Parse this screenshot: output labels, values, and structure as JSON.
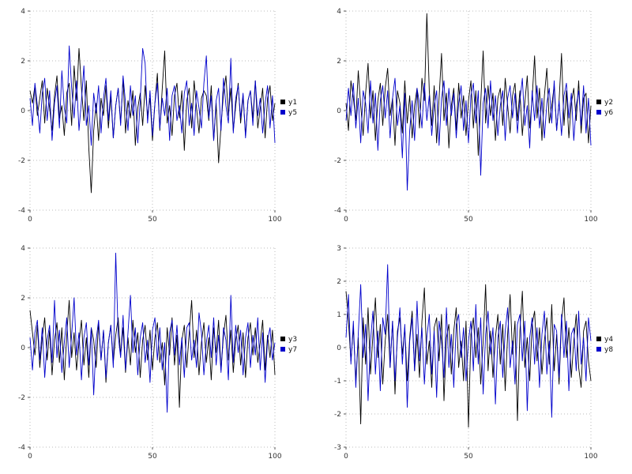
{
  "layout_colors": {
    "background": "#ffffff",
    "grid_color": "#bbbbbb",
    "tick_text_color": "#333333",
    "series_black": "#000000",
    "series_blue": "#0000cc"
  },
  "chart_data": [
    {
      "id": "panel-1",
      "type": "line",
      "title": "",
      "xlabel": "",
      "ylabel": "",
      "xlim": [
        0,
        100
      ],
      "ylim": [
        -4,
        4
      ],
      "xticks": [
        0,
        50,
        100
      ],
      "yticks": [
        -4,
        -2,
        0,
        2,
        4
      ],
      "grid": true,
      "legend_position": "right",
      "series": [
        {
          "name": "y1",
          "color": "#000000",
          "values": [
            0.8,
            0.3,
            1.0,
            -0.2,
            0.5,
            1.2,
            -0.5,
            0.9,
            0.1,
            -0.8,
            0.6,
            1.4,
            -0.3,
            0.2,
            -1.0,
            0.7,
            1.1,
            -0.6,
            1.8,
            0.4,
            2.5,
            0.9,
            -0.4,
            1.2,
            -1.5,
            -3.3,
            -0.8,
            0.3,
            -1.2,
            0.5,
            -0.2,
            1.0,
            -0.7,
            0.6,
            -1.1,
            0.2,
            0.9,
            -0.5,
            1.3,
            -0.9,
            0.4,
            -0.3,
            0.8,
            -1.4,
            0.1,
            0.7,
            -0.6,
            1.0,
            -0.2,
            0.5,
            -1.2,
            0.3,
            1.5,
            -0.8,
            0.9,
            2.4,
            -0.5,
            0.2,
            -1.0,
            0.6,
            1.1,
            -0.3,
            0.8,
            -1.6,
            0.4,
            0.9,
            -0.7,
            1.2,
            0.1,
            -0.9,
            0.5,
            0.8,
            0.6,
            -0.4,
            1.0,
            -1.2,
            0.3,
            -2.1,
            -0.6,
            0.7,
            1.4,
            -0.2,
            0.9,
            -0.8,
            0.2,
            1.1,
            -0.5,
            0.6,
            -1.0,
            0.4,
            0.8,
            -0.3,
            1.2,
            -0.7,
            0.1,
            0.9,
            -1.1,
            0.5,
            1.0,
            -0.4,
            0.3
          ]
        },
        {
          "name": "y5",
          "color": "#0000cc",
          "values": [
            0.5,
            -0.6,
            1.1,
            0.2,
            -0.9,
            0.7,
            1.3,
            -0.4,
            0.8,
            -1.2,
            0.3,
            1.0,
            -0.7,
            1.6,
            0.1,
            -0.5,
            2.6,
            0.9,
            -0.3,
            1.2,
            -0.8,
            0.4,
            1.8,
            -0.6,
            0.2,
            -1.4,
            0.7,
            -0.1,
            1.0,
            -0.9,
            0.5,
            1.3,
            -0.4,
            0.8,
            -1.1,
            0.2,
            0.9,
            -0.6,
            1.4,
            0.3,
            -0.8,
            1.0,
            -0.2,
            0.6,
            -1.3,
            0.4,
            2.5,
            1.9,
            -0.5,
            0.8,
            -1.0,
            0.3,
            1.1,
            -0.7,
            0.5,
            -0.2,
            0.9,
            -1.2,
            0.6,
            1.0,
            -0.4,
            0.2,
            -0.9,
            0.7,
            1.2,
            -0.6,
            0.3,
            -1.0,
            0.8,
            0.1,
            -0.7,
            1.1,
            2.2,
            -0.3,
            0.6,
            -1.2,
            0.4,
            0.9,
            -0.8,
            1.3,
            0.2,
            -0.5,
            2.1,
            -0.9,
            0.5,
            1.0,
            -0.3,
            0.7,
            -1.1,
            0.4,
            0.8,
            -0.6,
            1.2,
            -0.2,
            0.5,
            -0.9,
            0.3,
            1.0,
            -0.7,
            0.6,
            -1.3
          ]
        }
      ]
    },
    {
      "id": "panel-2",
      "type": "line",
      "title": "",
      "xlabel": "",
      "ylabel": "",
      "xlim": [
        0,
        100
      ],
      "ylim": [
        -4,
        4
      ],
      "xticks": [
        0,
        50,
        100
      ],
      "yticks": [
        -4,
        -2,
        0,
        2,
        4
      ],
      "grid": true,
      "legend_position": "right",
      "series": [
        {
          "name": "y2",
          "color": "#000000",
          "values": [
            0.3,
            -0.8,
            1.2,
            0.5,
            -0.4,
            1.6,
            0.2,
            -1.0,
            0.7,
            1.9,
            -0.3,
            0.8,
            -1.2,
            0.4,
            1.1,
            -0.6,
            0.9,
            1.7,
            -0.2,
            0.5,
            -1.4,
            0.8,
            0.3,
            -0.9,
            1.2,
            -0.5,
            0.6,
            -1.1,
            0.2,
            0.9,
            -0.7,
            1.3,
            0.4,
            3.9,
            0.8,
            -0.6,
            1.0,
            -1.3,
            0.5,
            2.3,
            -0.4,
            0.7,
            -1.5,
            0.2,
            0.9,
            -0.8,
            1.1,
            -0.3,
            0.6,
            -1.0,
            0.4,
            1.2,
            -0.7,
            0.8,
            -1.8,
            0.3,
            2.4,
            -0.5,
            1.0,
            -0.2,
            0.7,
            -1.2,
            0.5,
            0.9,
            -0.6,
            1.3,
            0.2,
            -0.9,
            0.6,
            1.1,
            -0.4,
            0.8,
            -1.0,
            0.3,
            1.4,
            -0.7,
            0.5,
            2.2,
            -0.3,
            0.9,
            -1.2,
            0.6,
            1.7,
            -0.5,
            0.2,
            1.0,
            -0.8,
            0.4,
            2.3,
            -0.6,
            0.8,
            -1.1,
            0.3,
            0.9,
            -0.4,
            1.2,
            -0.9,
            0.5,
            0.7,
            -1.3,
            0.2
          ]
        },
        {
          "name": "y6",
          "color": "#0000cc",
          "values": [
            -0.4,
            0.9,
            -0.2,
            1.1,
            -0.7,
            0.5,
            -1.3,
            0.8,
            0.3,
            -0.9,
            1.2,
            -0.5,
            0.7,
            -1.6,
            0.4,
            1.0,
            -0.3,
            0.8,
            -1.1,
            0.5,
            1.3,
            -0.6,
            0.2,
            -1.9,
            0.7,
            -3.2,
            -0.8,
            0.4,
            -1.2,
            0.9,
            0.3,
            -0.7,
            1.1,
            -0.4,
            0.6,
            -1.0,
            0.2,
            0.8,
            -1.4,
            0.5,
            1.2,
            -0.6,
            0.9,
            -0.2,
            0.7,
            -1.1,
            0.3,
            1.0,
            -0.8,
            0.4,
            -1.3,
            0.6,
            1.1,
            -0.5,
            0.8,
            -2.6,
            0.3,
            0.9,
            -0.7,
            1.2,
            -0.4,
            0.6,
            -1.0,
            0.2,
            0.8,
            -1.2,
            0.5,
            1.0,
            -0.3,
            0.7,
            -0.9,
            0.4,
            1.3,
            -0.6,
            0.2,
            -1.5,
            0.8,
            -0.4,
            1.0,
            -0.7,
            0.5,
            -1.1,
            0.3,
            0.9,
            -0.5,
            1.2,
            -0.8,
            0.4,
            -1.0,
            0.6,
            1.1,
            -0.3,
            0.7,
            -1.2,
            0.2,
            0.8,
            -0.6,
            1.0,
            -0.9,
            0.5,
            -1.4
          ]
        }
      ]
    },
    {
      "id": "panel-3",
      "type": "line",
      "title": "",
      "xlabel": "",
      "ylabel": "",
      "xlim": [
        0,
        100
      ],
      "ylim": [
        -4,
        4
      ],
      "xticks": [
        0,
        50,
        100
      ],
      "yticks": [
        -4,
        -2,
        0,
        2,
        4
      ],
      "grid": true,
      "legend_position": "right",
      "series": [
        {
          "name": "y3",
          "color": "#000000",
          "values": [
            1.5,
            0.6,
            -0.3,
            0.9,
            -0.8,
            0.4,
            1.2,
            -0.5,
            0.7,
            -1.1,
            0.3,
            1.0,
            -0.6,
            0.8,
            -1.3,
            0.5,
            1.9,
            -0.4,
            0.6,
            -0.9,
            0.2,
            1.1,
            -0.7,
            0.4,
            -1.2,
            0.8,
            0.3,
            -0.8,
            1.0,
            -0.5,
            0.7,
            -1.4,
            0.2,
            0.9,
            -0.6,
            0.5,
            1.2,
            -0.3,
            0.8,
            -1.0,
            0.4,
            -0.7,
            1.1,
            -0.2,
            0.6,
            -1.2,
            0.3,
            0.9,
            -0.5,
            0.7,
            -0.9,
            0.4,
            1.0,
            -0.6,
            0.2,
            -1.5,
            0.8,
            -0.3,
            1.2,
            -0.7,
            0.5,
            -2.4,
            0.3,
            0.9,
            -0.8,
            0.6,
            1.9,
            -0.4,
            0.7,
            -1.1,
            0.2,
            1.0,
            -0.6,
            0.4,
            -1.3,
            0.8,
            -0.2,
            1.1,
            -0.9,
            0.5,
            1.3,
            -0.5,
            0.7,
            -1.0,
            0.3,
            0.9,
            -0.7,
            0.6,
            -1.2,
            0.4,
            1.0,
            -0.3,
            0.8,
            -0.6,
            0.2,
            1.1,
            -0.9,
            0.5,
            -0.4,
            0.7,
            -1.1
          ]
        },
        {
          "name": "y7",
          "color": "#0000cc",
          "values": [
            0.4,
            -0.9,
            0.6,
            1.1,
            -0.5,
            0.8,
            -1.2,
            0.3,
            0.9,
            -0.6,
            1.9,
            -0.4,
            0.7,
            -1.0,
            0.2,
            1.2,
            -0.8,
            0.5,
            2.0,
            -0.3,
            0.6,
            -1.3,
            0.4,
            1.0,
            -0.7,
            0.8,
            -1.9,
            0.3,
            1.1,
            -0.5,
            0.7,
            -1.2,
            0.2,
            0.9,
            -0.8,
            3.8,
            0.5,
            -0.4,
            1.3,
            -0.9,
            0.6,
            2.1,
            -0.2,
            0.8,
            -1.1,
            0.4,
            1.0,
            -0.6,
            0.3,
            -1.4,
            0.7,
            1.2,
            -0.5,
            0.8,
            -0.9,
            0.2,
            -2.6,
            0.6,
            1.1,
            -0.3,
            0.9,
            -0.7,
            0.4,
            -1.2,
            0.8,
            1.0,
            -0.5,
            0.3,
            -0.8,
            1.4,
            0.6,
            -1.1,
            0.2,
            0.9,
            -0.4,
            1.2,
            -0.7,
            0.5,
            -1.0,
            0.8,
            0.3,
            -1.3,
            2.1,
            -0.6,
            0.9,
            -0.2,
            0.7,
            -1.1,
            0.4,
            1.0,
            -0.8,
            0.5,
            -0.3,
            1.2,
            -0.9,
            0.6,
            -1.4,
            0.3,
            0.8,
            -0.5,
            0.2
          ]
        }
      ]
    },
    {
      "id": "panel-4",
      "type": "line",
      "title": "",
      "xlabel": "",
      "ylabel": "",
      "xlim": [
        0,
        100
      ],
      "ylim": [
        -3,
        3
      ],
      "xticks": [
        0,
        50,
        100
      ],
      "yticks": [
        -3,
        -2,
        -1,
        0,
        1,
        2,
        3
      ],
      "grid": true,
      "legend_position": "right",
      "series": [
        {
          "name": "y4",
          "color": "#000000",
          "values": [
            1.7,
            0.8,
            -0.4,
            0.6,
            -1.0,
            0.3,
            -2.3,
            0.9,
            -0.5,
            1.2,
            -0.8,
            0.4,
            1.5,
            -0.3,
            0.7,
            -1.1,
            0.2,
            1.0,
            -0.6,
            0.8,
            -1.4,
            0.5,
            0.9,
            -0.2,
            0.6,
            -1.0,
            0.3,
            1.1,
            -0.7,
            0.4,
            -0.9,
            0.8,
            1.8,
            -0.5,
            0.2,
            -1.2,
            0.6,
            0.9,
            -0.4,
            1.0,
            -1.6,
            0.3,
            0.7,
            -0.8,
            0.5,
            1.2,
            -0.6,
            0.2,
            -1.0,
            0.8,
            -2.4,
            0.4,
            0.9,
            -0.3,
            0.6,
            -1.1,
            0.2,
            1.9,
            -0.7,
            0.5,
            -0.9,
            0.3,
            1.0,
            -0.5,
            0.7,
            -1.3,
            0.4,
            1.6,
            -0.2,
            0.8,
            -2.2,
            0.5,
            1.7,
            -0.6,
            0.3,
            -1.0,
            0.7,
            1.1,
            -0.4,
            0.6,
            -0.8,
            0.2,
            0.9,
            -0.5,
            1.3,
            -0.7,
            0.4,
            -1.1,
            0.8,
            1.5,
            -0.3,
            0.6,
            -0.9,
            0.2,
            1.0,
            -0.6,
            -1.2,
            0.5,
            0.8,
            -0.4,
            -1.0
          ]
        },
        {
          "name": "y8",
          "color": "#0000cc",
          "values": [
            0.3,
            1.6,
            -0.5,
            0.8,
            -1.2,
            0.4,
            1.9,
            -0.3,
            0.7,
            -1.6,
            0.2,
            1.1,
            -0.8,
            0.5,
            -1.3,
            0.9,
            0.4,
            2.5,
            -0.6,
            0.8,
            -1.0,
            0.3,
            1.2,
            -0.5,
            0.7,
            -1.8,
            0.2,
            0.9,
            -0.7,
            1.4,
            -0.4,
            0.6,
            -1.1,
            0.3,
            1.0,
            -0.8,
            0.5,
            -1.5,
            0.8,
            0.2,
            -0.9,
            1.2,
            -0.6,
            0.4,
            -1.2,
            0.7,
            1.0,
            -0.3,
            0.6,
            -1.0,
            0.2,
            0.8,
            -0.7,
            1.3,
            -0.5,
            0.9,
            -1.4,
            0.4,
            1.1,
            -0.2,
            0.6,
            -1.7,
            0.3,
            0.8,
            -0.9,
            0.5,
            1.2,
            -0.6,
            0.2,
            -1.1,
            0.7,
            1.0,
            -0.4,
            0.8,
            -1.9,
            0.3,
            0.9,
            -0.5,
            0.6,
            -1.2,
            0.4,
            1.1,
            -0.8,
            0.2,
            -2.1,
            0.7,
            0.5,
            -0.9,
            1.0,
            -0.3,
            0.8,
            -1.3,
            0.4,
            0.6,
            -0.7,
            1.1,
            -0.5,
            0.3,
            -1.0,
            0.9,
            0.2
          ]
        }
      ]
    }
  ]
}
